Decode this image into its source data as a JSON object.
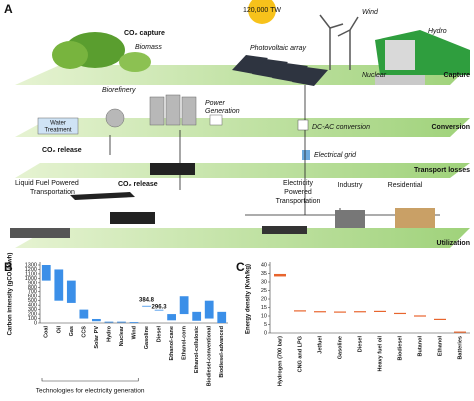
{
  "diagram": {
    "panel": "A",
    "sun": "120,000 TW",
    "wind": "Wind",
    "hydro": "Hydro",
    "co2_capture": "CO₂ capture",
    "biomass": "Biomass",
    "pv": "Photovoltaic array",
    "nuclear": "Nuclear",
    "capture": "Capture",
    "biorefinery": "Biorefinery",
    "power_generation": [
      "Power",
      "Generation"
    ],
    "water_treatment": [
      "Water",
      "Treatment"
    ],
    "dcac": "DC-AC conversion",
    "conversion": "Conversion",
    "co2_release_1": "CO₂ release",
    "co2_release_2": "CO₂ release",
    "grid": "Electrical grid",
    "transport_losses": "Transport losses",
    "liquid": [
      "Liquid Fuel Powered",
      "Transportation"
    ],
    "electric": [
      "Electricity",
      "Powered",
      "Transportation"
    ],
    "industry": "Industry",
    "residential": "Residential",
    "utilization": "Utilization"
  },
  "chart_data": [
    {
      "type": "range-bar",
      "panel": "B",
      "ylabel": "Carbon intensity (gCO₂/Kwh)",
      "xlabel": "Technologies for electricity generation",
      "color": "#3b8fe8",
      "categories": [
        "Coal",
        "Oil",
        "Gas",
        "CCS",
        "Solar PV",
        "Hydro",
        "Nuclear",
        "Wind",
        "Gasoline",
        "Diesel",
        "Ethanol-cane",
        "Ethanol-corn",
        "Ethanol-cellulosic",
        "Biodiesel-conventional",
        "Biodiesel-advanced"
      ],
      "low": [
        950,
        500,
        450,
        100,
        40,
        10,
        10,
        10,
        384.8,
        296.3,
        60,
        200,
        50,
        100,
        0
      ],
      "high": [
        1300,
        1200,
        950,
        300,
        90,
        30,
        30,
        20,
        384.8,
        296.3,
        200,
        600,
        250,
        500,
        250
      ],
      "value_labels": [
        null,
        null,
        null,
        null,
        null,
        null,
        null,
        null,
        "384.8",
        "296.3",
        null,
        null,
        null,
        null,
        null
      ],
      "ylim": [
        0,
        1300
      ],
      "yticks": [
        0,
        100,
        200,
        300,
        400,
        500,
        600,
        700,
        800,
        900,
        1000,
        1100,
        1200,
        1300
      ]
    },
    {
      "type": "marker",
      "panel": "C",
      "ylabel": "Energy density (Kwh/kg)",
      "color": "#e8652e",
      "categories": [
        "Hydrogen (700 bar)",
        "CNG and LPG",
        "Jetfuel",
        "Gasoline",
        "Diesel",
        "Heavy fuel oil",
        "Biodiesel",
        "Butanol",
        "Ethanol",
        "Batteries"
      ],
      "values": [
        34,
        13,
        12.5,
        12.3,
        12.5,
        12.7,
        11.5,
        10,
        8,
        0.5
      ],
      "ylim": [
        0,
        40
      ],
      "yticks": [
        0,
        5,
        10,
        15,
        20,
        25,
        30,
        35,
        40
      ]
    }
  ]
}
